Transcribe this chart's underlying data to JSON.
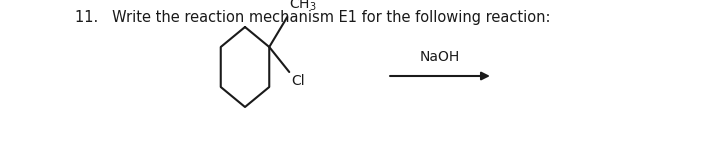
{
  "title_text": "11.   Write the reaction mechanism E1 for the following reaction:",
  "title_fontsize": 10.5,
  "title_color": "#1a1a1a",
  "bg_color": "#ffffff",
  "ring_color": "#1a1a1a",
  "ring_linewidth": 1.5,
  "ch3_label": "CH$_3$",
  "ch3_fontsize": 10,
  "cl_label": "Cl",
  "cl_fontsize": 10,
  "naoh_label": "NaOH",
  "naoh_fontsize": 10,
  "arrow_color": "#1a1a1a",
  "arrow_linewidth": 1.5,
  "figwidth": 7.2,
  "figheight": 1.44,
  "dpi": 100
}
